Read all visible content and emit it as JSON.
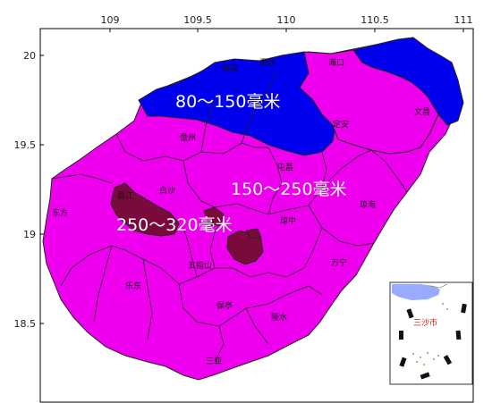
{
  "axes": {
    "x_ticks": [
      "109",
      "109.5",
      "110",
      "110.5",
      "111"
    ],
    "y_ticks": [
      "20",
      "19.5",
      "19",
      "18.5"
    ]
  },
  "legend_bands": [
    {
      "label": "80～150毫米",
      "color": "#0000ee"
    },
    {
      "label": "150～250毫米",
      "color": "#ee00ee"
    },
    {
      "label": "250～320毫米",
      "color": "#7a0a3c"
    }
  ],
  "cities": [
    {
      "name": "临高"
    },
    {
      "name": "澄迈"
    },
    {
      "name": "海口"
    },
    {
      "name": "文昌"
    },
    {
      "name": "儋州"
    },
    {
      "name": "定安"
    },
    {
      "name": "屯昌"
    },
    {
      "name": "琼海"
    },
    {
      "name": "白沙"
    },
    {
      "name": "昌江"
    },
    {
      "name": "东方"
    },
    {
      "name": "琼中"
    },
    {
      "name": "五指山"
    },
    {
      "name": "万宁"
    },
    {
      "name": "乐东"
    },
    {
      "name": "保亭"
    },
    {
      "name": "陵水"
    },
    {
      "name": "三亚"
    }
  ],
  "inset": {
    "label": "三沙市"
  },
  "colors": {
    "frame": "#000000",
    "boundary": "#222222",
    "sea_inset": "#99aaff"
  }
}
